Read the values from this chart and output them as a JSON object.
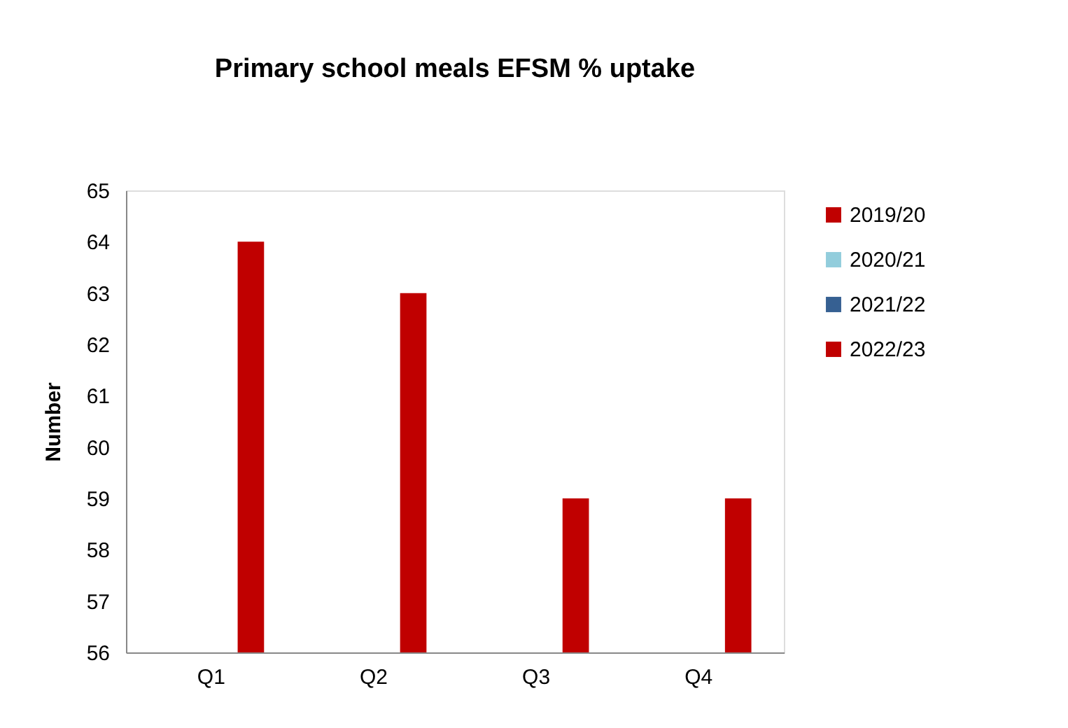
{
  "chart_data": {
    "type": "bar",
    "title": "Primary school meals EFSM % uptake",
    "ylabel": "Number",
    "categories": [
      "Q1",
      "Q2",
      "Q3",
      "Q4"
    ],
    "series": [
      {
        "name": "2019/20",
        "color": "#c00000",
        "values": [
          null,
          null,
          null,
          null
        ]
      },
      {
        "name": "2020/21",
        "color": "#92cddc",
        "values": [
          null,
          null,
          null,
          null
        ]
      },
      {
        "name": "2021/22",
        "color": "#366092",
        "values": [
          null,
          null,
          null,
          null
        ]
      },
      {
        "name": "2022/23",
        "color": "#c00000",
        "values": [
          64,
          63,
          59,
          59
        ]
      }
    ],
    "ylim": [
      56,
      65
    ],
    "yticks": [
      56,
      57,
      58,
      59,
      60,
      61,
      62,
      63,
      64,
      65
    ],
    "grid": false,
    "legend": "right"
  }
}
